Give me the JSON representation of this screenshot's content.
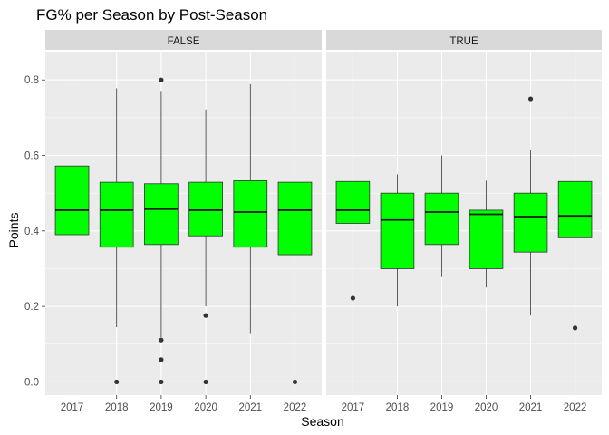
{
  "chart_data": {
    "type": "boxplot",
    "title": "FG% per Season by Post-Season",
    "xlabel": "Season",
    "ylabel": "Points",
    "ylim": [
      -0.035,
      0.875
    ],
    "y_ticks": [
      "0.0",
      "0.2",
      "0.4",
      "0.6",
      "0.8"
    ],
    "y_tick_values": [
      0.0,
      0.2,
      0.4,
      0.6,
      0.8
    ],
    "categories": [
      "2017",
      "2018",
      "2019",
      "2020",
      "2021",
      "2022"
    ],
    "box_fill": "#00ff00",
    "grid": true,
    "legend": "none",
    "facets": [
      {
        "label": "FALSE",
        "boxes": [
          {
            "season": "2017",
            "min": 0.145,
            "q1": 0.39,
            "median": 0.455,
            "q3": 0.572,
            "max": 0.835,
            "outliers": []
          },
          {
            "season": "2018",
            "min": 0.145,
            "q1": 0.357,
            "median": 0.455,
            "q3": 0.529,
            "max": 0.778,
            "outliers": [
              0.0
            ]
          },
          {
            "season": "2019",
            "min": 0.118,
            "q1": 0.364,
            "median": 0.458,
            "q3": 0.525,
            "max": 0.771,
            "outliers": [
              0.8,
              0.111,
              0.059,
              0.0
            ]
          },
          {
            "season": "2020",
            "min": 0.2,
            "q1": 0.387,
            "median": 0.455,
            "q3": 0.529,
            "max": 0.722,
            "outliers": [
              0.176,
              0.0
            ]
          },
          {
            "season": "2021",
            "min": 0.127,
            "q1": 0.357,
            "median": 0.45,
            "q3": 0.533,
            "max": 0.789,
            "outliers": []
          },
          {
            "season": "2022",
            "min": 0.188,
            "q1": 0.337,
            "median": 0.455,
            "q3": 0.529,
            "max": 0.705,
            "outliers": [
              0.0
            ]
          }
        ]
      },
      {
        "label": "TRUE",
        "boxes": [
          {
            "season": "2017",
            "min": 0.287,
            "q1": 0.42,
            "median": 0.455,
            "q3": 0.531,
            "max": 0.647,
            "outliers": [
              0.222
            ]
          },
          {
            "season": "2018",
            "min": 0.2,
            "q1": 0.3,
            "median": 0.429,
            "q3": 0.5,
            "max": 0.55,
            "outliers": []
          },
          {
            "season": "2019",
            "min": 0.278,
            "q1": 0.364,
            "median": 0.45,
            "q3": 0.5,
            "max": 0.6,
            "outliers": []
          },
          {
            "season": "2020",
            "min": 0.25,
            "q1": 0.3,
            "median": 0.444,
            "q3": 0.455,
            "max": 0.533,
            "outliers": []
          },
          {
            "season": "2021",
            "min": 0.176,
            "q1": 0.344,
            "median": 0.438,
            "q3": 0.5,
            "max": 0.615,
            "outliers": [
              0.75
            ]
          },
          {
            "season": "2022",
            "min": 0.238,
            "q1": 0.382,
            "median": 0.44,
            "q3": 0.531,
            "max": 0.636,
            "outliers": [
              0.143
            ]
          }
        ]
      }
    ]
  }
}
